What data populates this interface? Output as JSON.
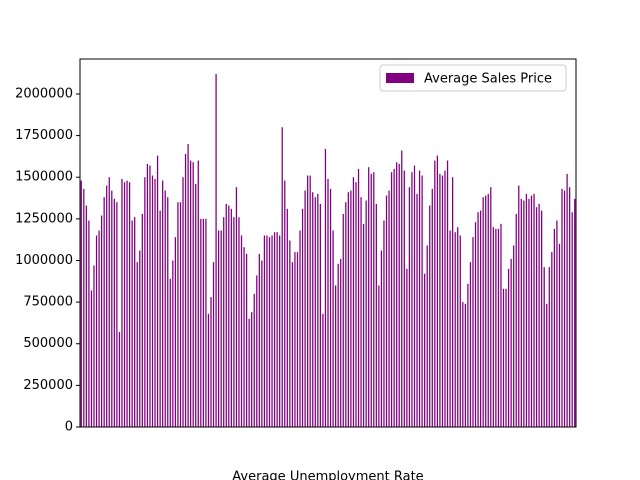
{
  "chart_data": {
    "type": "bar",
    "x_label": "Average Unemployment Rate",
    "legend_loc": "upper right",
    "series": [
      {
        "name": "Average Sales Price",
        "color": "#800080",
        "values": [
          1480000,
          1430000,
          1330000,
          1240000,
          820000,
          970000,
          1150000,
          1180000,
          1270000,
          1380000,
          1450000,
          1500000,
          1420000,
          1370000,
          1350000,
          570000,
          1490000,
          1470000,
          1480000,
          1470000,
          1240000,
          1260000,
          990000,
          1060000,
          1280000,
          1500000,
          1580000,
          1570000,
          1510000,
          1490000,
          1630000,
          1300000,
          1480000,
          1420000,
          1380000,
          890000,
          1000000,
          1140000,
          1350000,
          1350000,
          1500000,
          1640000,
          1700000,
          1600000,
          1590000,
          1460000,
          1600000,
          1250000,
          1250000,
          1250000,
          680000,
          780000,
          990000,
          2120000,
          1180000,
          1180000,
          1260000,
          1340000,
          1330000,
          1310000,
          1260000,
          1440000,
          1260000,
          1150000,
          1080000,
          1040000,
          650000,
          690000,
          800000,
          910000,
          1040000,
          1000000,
          1150000,
          1150000,
          1140000,
          1150000,
          1170000,
          1170000,
          1150000,
          1800000,
          1480000,
          1310000,
          1120000,
          990000,
          1050000,
          1050000,
          1180000,
          1310000,
          1420000,
          1510000,
          1510000,
          1410000,
          1380000,
          1400000,
          1340000,
          680000,
          1670000,
          1490000,
          1430000,
          1180000,
          850000,
          980000,
          1010000,
          1280000,
          1350000,
          1410000,
          1420000,
          1500000,
          1470000,
          1550000,
          1380000,
          1220000,
          1360000,
          1560000,
          1520000,
          1530000,
          1340000,
          850000,
          1060000,
          1240000,
          1390000,
          1420000,
          1530000,
          1550000,
          1590000,
          1580000,
          1660000,
          1540000,
          950000,
          1440000,
          1530000,
          1570000,
          1400000,
          1540000,
          1510000,
          920000,
          1090000,
          1330000,
          1430000,
          1600000,
          1630000,
          1520000,
          1510000,
          1540000,
          1600000,
          1180000,
          1500000,
          1170000,
          1200000,
          1150000,
          750000,
          740000,
          860000,
          990000,
          1140000,
          1230000,
          1290000,
          1300000,
          1380000,
          1390000,
          1400000,
          1440000,
          1200000,
          1190000,
          1190000,
          1220000,
          830000,
          830000,
          950000,
          1010000,
          1090000,
          1280000,
          1450000,
          1370000,
          1360000,
          1400000,
          1370000,
          1390000,
          1400000,
          1320000,
          1340000,
          1300000,
          960000,
          740000,
          960000,
          1050000,
          1190000,
          1240000,
          1100000,
          1430000,
          1420000,
          1520000,
          1440000,
          1290000,
          1370000
        ]
      }
    ],
    "categories": [
      null,
      null,
      null,
      null,
      null,
      null,
      null,
      null,
      null,
      null,
      null,
      null,
      null,
      null,
      null,
      null,
      null,
      null,
      null,
      null,
      null,
      null,
      null,
      null,
      null,
      null,
      null,
      null,
      null,
      null,
      null,
      null,
      null,
      null,
      null,
      null,
      null,
      null,
      null,
      null,
      null,
      null,
      null,
      null,
      null,
      null,
      null,
      null,
      null,
      null,
      null,
      null,
      null,
      null,
      null,
      null,
      null,
      null,
      null,
      null,
      null,
      null,
      null,
      null,
      null,
      null,
      null,
      null,
      null,
      null,
      null,
      null,
      null,
      null,
      null,
      null,
      null,
      null,
      null,
      null,
      null,
      null,
      null,
      null,
      null,
      null,
      null,
      null,
      null,
      null,
      null,
      null,
      null,
      null,
      null,
      null,
      null,
      null,
      null,
      null,
      null,
      null,
      null,
      null,
      null,
      null,
      null,
      null,
      null,
      null,
      null,
      null,
      null,
      null,
      null,
      null,
      null,
      null,
      null,
      null,
      null,
      null,
      null,
      null,
      null,
      null,
      null,
      null,
      null,
      null,
      null,
      null,
      null,
      null,
      null,
      null,
      null,
      null,
      null,
      null,
      null,
      null,
      null,
      null,
      null,
      null,
      null,
      null,
      null,
      null,
      null,
      null,
      null,
      null,
      null,
      null,
      null,
      null,
      null,
      null,
      null,
      null,
      null,
      null,
      null,
      null,
      null,
      null,
      null,
      null,
      null,
      null,
      null,
      null,
      null,
      null,
      null,
      null,
      null,
      null,
      null,
      null,
      null,
      null,
      null,
      null,
      null,
      null,
      null,
      null,
      null,
      null,
      null,
      null,
      null
    ],
    "ylim": [
      0,
      2210000
    ],
    "yticks": [
      0,
      250000,
      500000,
      750000,
      1000000,
      1250000,
      1500000,
      1750000,
      2000000
    ],
    "grid": false
  }
}
